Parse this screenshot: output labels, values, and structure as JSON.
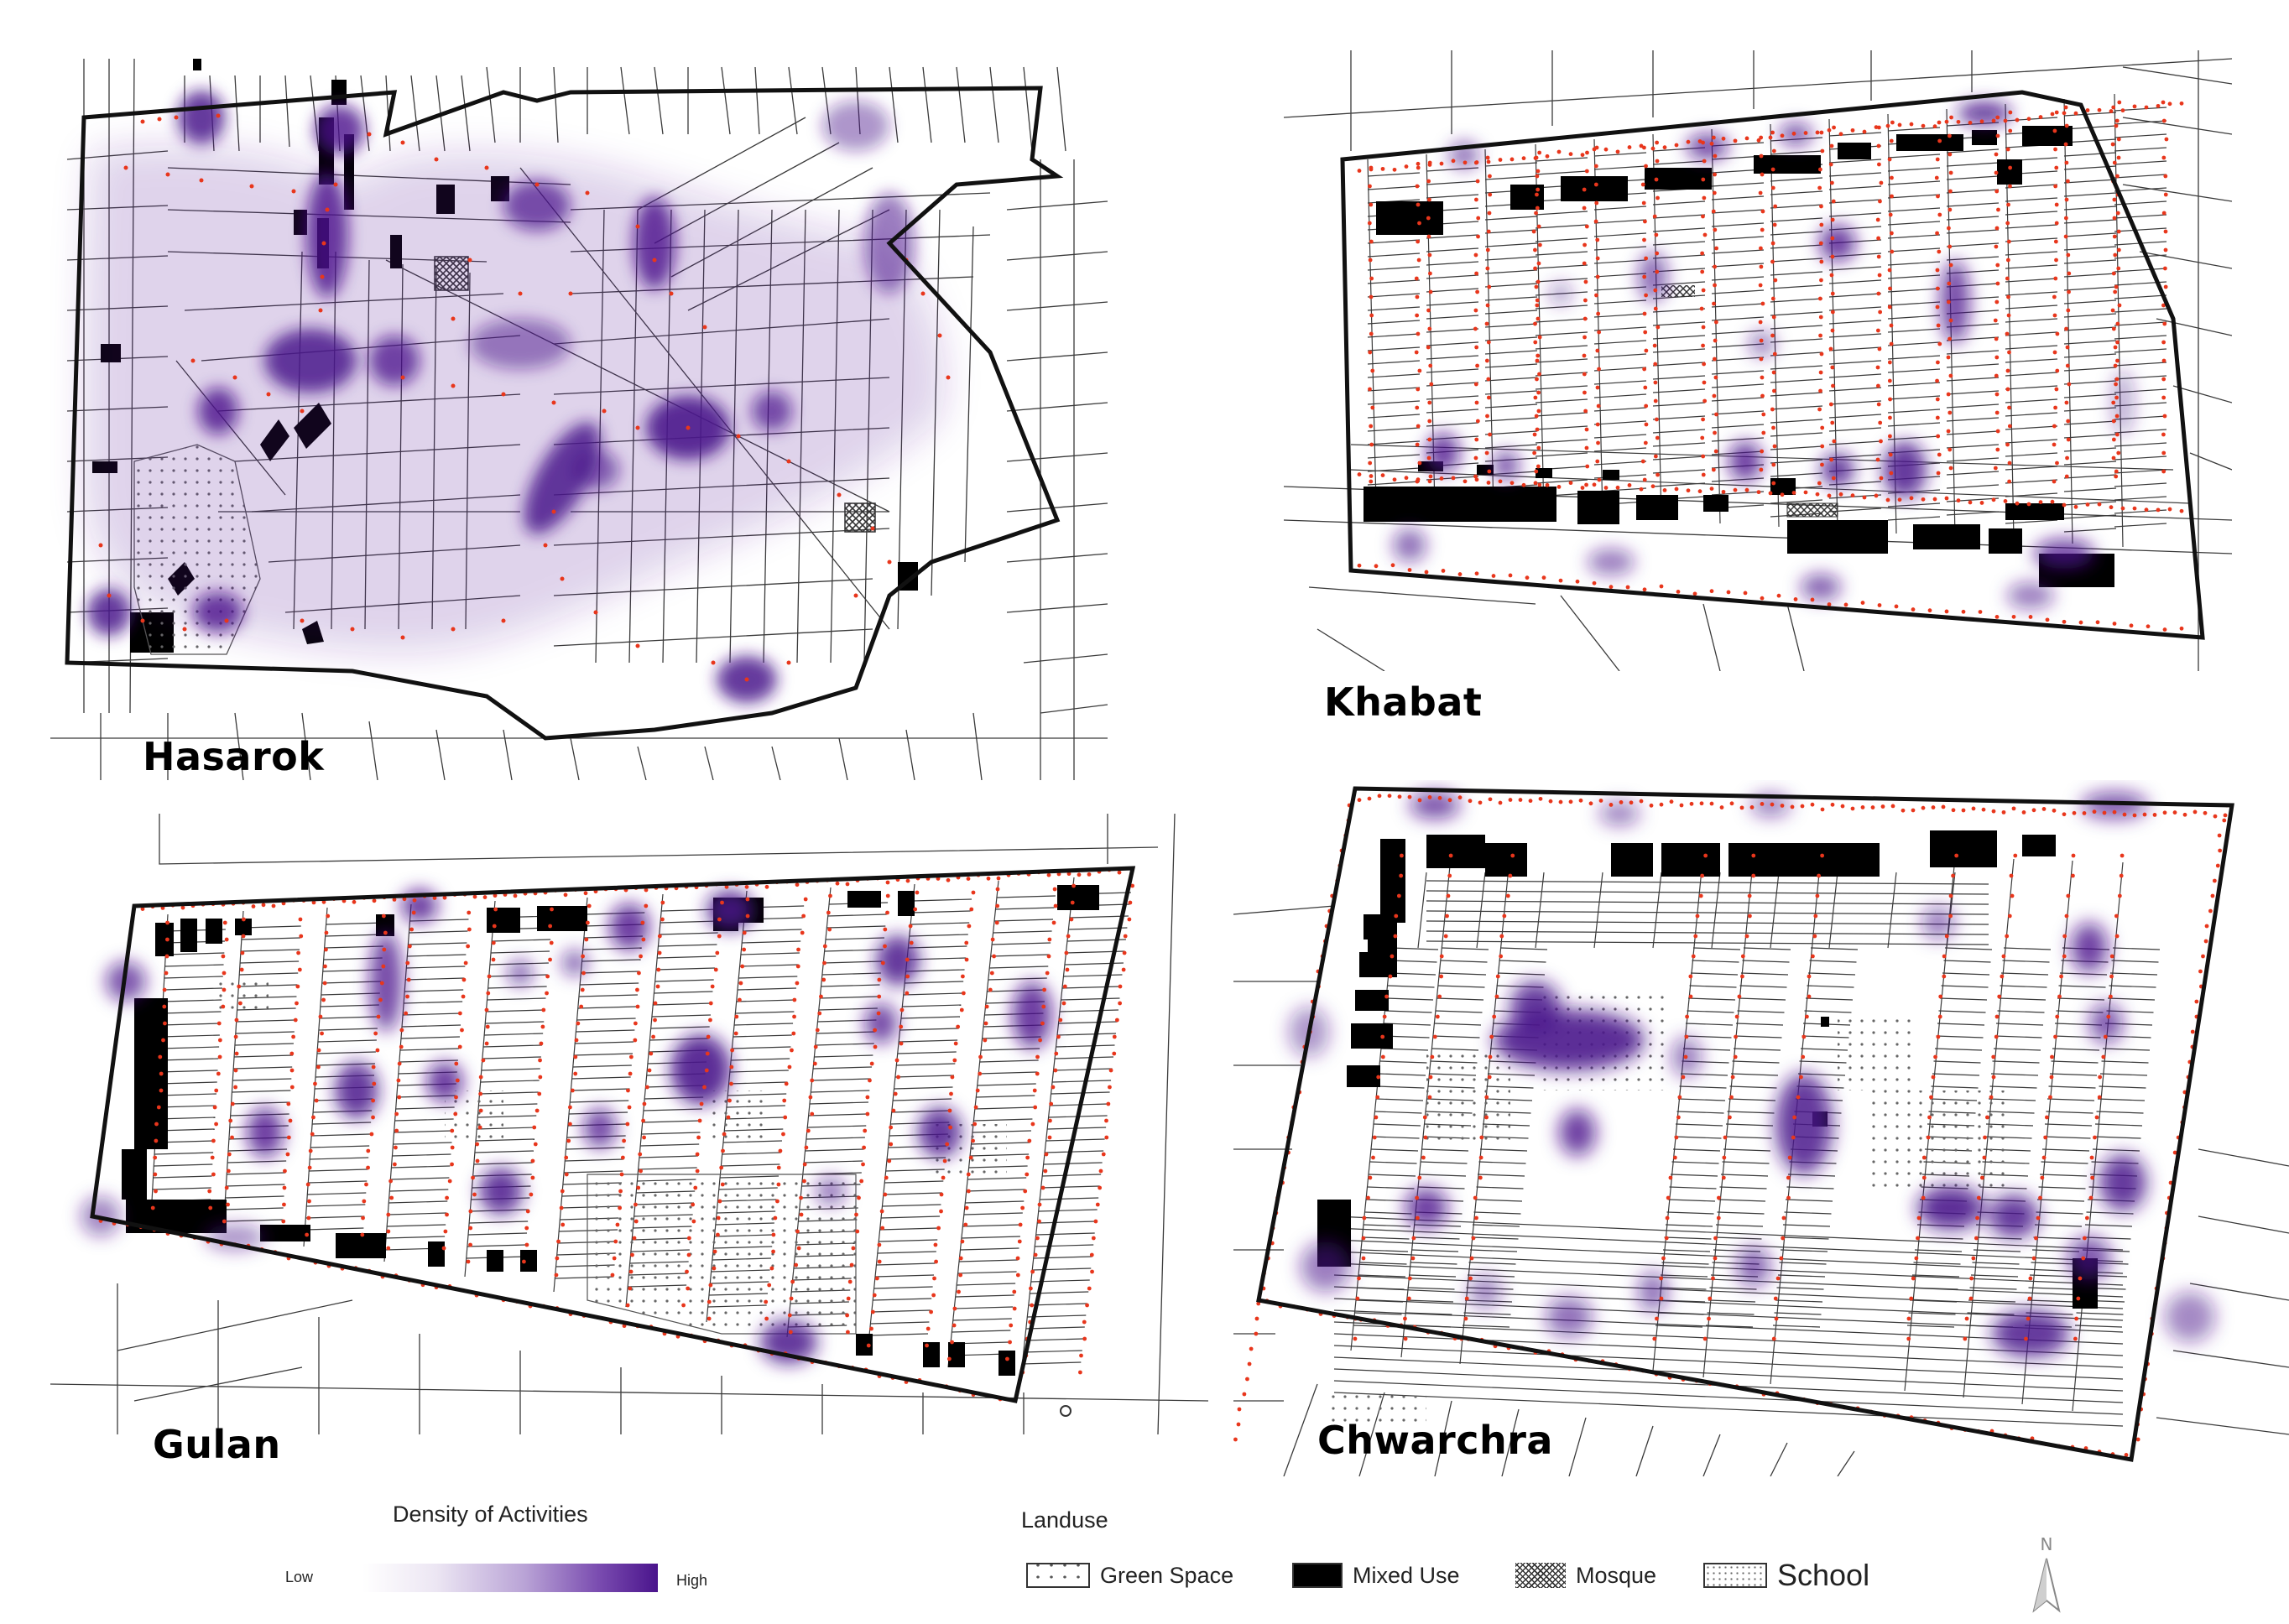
{
  "districts": [
    {
      "id": "hasarok",
      "name": "Hasarok"
    },
    {
      "id": "khabat",
      "name": "Khabat"
    },
    {
      "id": "gulan",
      "name": "Gulan"
    },
    {
      "id": "chwarchra",
      "name": "Chwarchra"
    }
  ],
  "legend": {
    "density": {
      "title": "Density of Activities",
      "low_label": "Low",
      "high_label": "High",
      "ramp_colors": [
        "#ffffff",
        "#ece6f3",
        "#b9a3d6",
        "#7a4cb0",
        "#4a148c"
      ]
    },
    "landuse": {
      "title": "Landuse",
      "items": [
        {
          "label": "Green Space",
          "pattern": "dots"
        },
        {
          "label": "Mixed Use",
          "pattern": "solid-black"
        },
        {
          "label": "Mosque",
          "pattern": "crosshatch"
        },
        {
          "label": "School",
          "pattern": "fine-dots"
        }
      ]
    },
    "north_arrow_label": "N"
  },
  "colors": {
    "hotspot": "#4a148c",
    "activity_point": "#e8361c",
    "parcel_line": "#3a3a3a",
    "boundary": "#111111",
    "mixed_use": "#000000"
  },
  "icons": {
    "north": "north-arrow-icon"
  }
}
